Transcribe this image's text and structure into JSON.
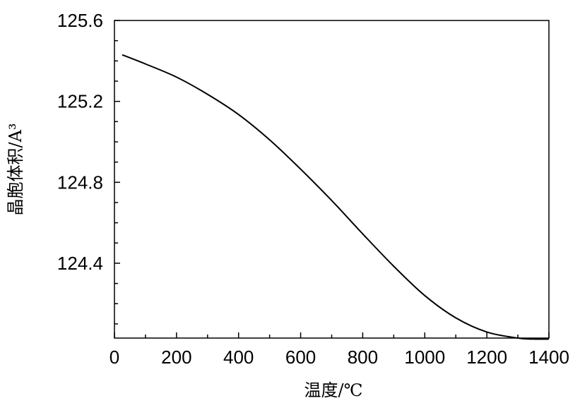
{
  "chart_data": {
    "type": "line",
    "title": "",
    "xlabel": "温度/℃",
    "ylabel": "晶胞体积/A³",
    "xlim": [
      0,
      1400
    ],
    "ylim": [
      124.03,
      125.6
    ],
    "x_ticks": [
      0,
      200,
      400,
      600,
      800,
      1000,
      1200,
      1400
    ],
    "x_minor_ticks": [
      100,
      300,
      500,
      700,
      900,
      1100,
      1300
    ],
    "y_ticks": [
      124.4,
      124.8,
      125.2,
      125.6
    ],
    "y_tick_labels": [
      "124.4",
      "124.8",
      "125.2",
      "125.6"
    ],
    "y_minor_ticks": [
      124.1,
      124.2,
      124.3,
      124.5,
      124.6,
      124.7,
      124.9,
      125.0,
      125.1,
      125.3,
      125.4,
      125.5
    ],
    "grid": false,
    "series": [
      {
        "x": [
          25,
          100,
          200,
          300,
          400,
          500,
          600,
          700,
          800,
          900,
          1000,
          1100,
          1200,
          1300,
          1350,
          1400
        ],
        "y": [
          125.43,
          125.385,
          125.32,
          125.235,
          125.135,
          125.01,
          124.865,
          124.71,
          124.545,
          124.385,
          124.24,
          124.13,
          124.06,
          124.03,
          124.025,
          124.025
        ]
      }
    ]
  }
}
